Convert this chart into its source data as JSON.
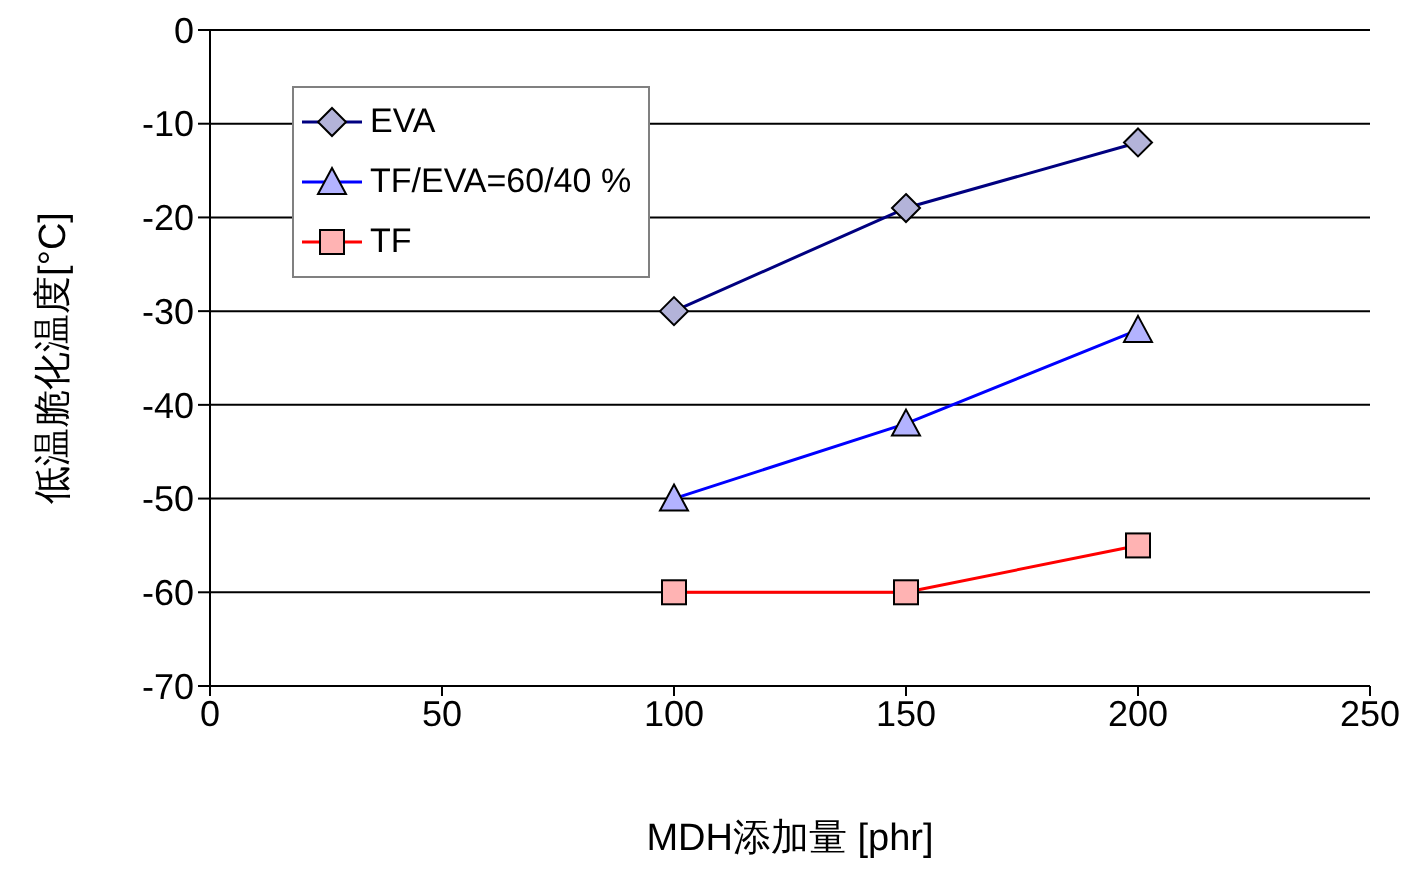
{
  "chart_data": {
    "type": "line",
    "xlabel": "MDH添加量 [phr]",
    "ylabel": "低温脆化温度[°C]",
    "x": [
      100,
      150,
      200
    ],
    "xlim": [
      0,
      250
    ],
    "xticks": [
      0,
      50,
      100,
      150,
      200,
      250
    ],
    "ylim": [
      -70,
      0
    ],
    "yticks": [
      -70,
      -60,
      -50,
      -40,
      -30,
      -20,
      -10,
      0
    ],
    "grid": "y",
    "legend": "top left",
    "series": [
      {
        "name": "EVA",
        "color": "#000080",
        "marker": "diamond",
        "values": [
          -30,
          -19,
          -12
        ]
      },
      {
        "name": "TF/EVA=60/40 %",
        "color": "#0000ff",
        "marker": "triangle",
        "values": [
          -50,
          -42,
          -32
        ]
      },
      {
        "name": "TF",
        "color": "#ff0000",
        "marker": "square",
        "values": [
          -60,
          -60,
          -55
        ]
      }
    ]
  }
}
